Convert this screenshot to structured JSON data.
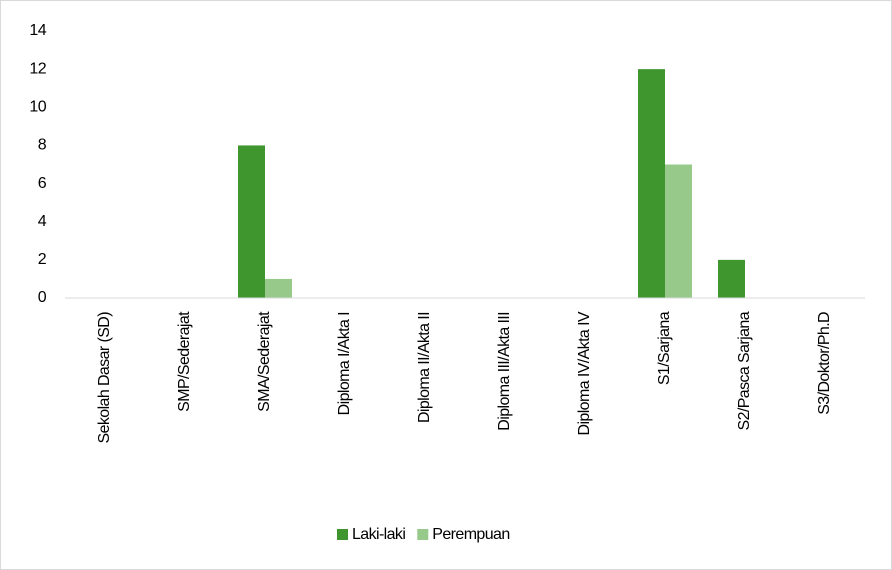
{
  "chart_data": {
    "type": "bar",
    "categories": [
      "Sekolah Dasar (SD)",
      "SMP/Sederajat",
      "SMA/Sederajat",
      "Diploma I/Akta I",
      "Diploma II/Akta II",
      "Diploma III/Akta III",
      "Diploma IV/Akta IV",
      "S1/Sarjana",
      "S2/Pasca Sarjana",
      "S3/Doktor/Ph.D"
    ],
    "series": [
      {
        "name": "Laki-laki",
        "color": "#3f962f",
        "values": [
          0,
          0,
          8,
          0,
          0,
          0,
          0,
          12,
          2,
          0
        ]
      },
      {
        "name": "Perempuan",
        "color": "#97c98a",
        "values": [
          0,
          0,
          1,
          0,
          0,
          0,
          0,
          7,
          0,
          0
        ]
      }
    ],
    "ylim": [
      0,
      14
    ],
    "yticks": [
      0,
      2,
      4,
      6,
      8,
      10,
      12,
      14
    ],
    "grid": false,
    "legend": "bottom"
  }
}
